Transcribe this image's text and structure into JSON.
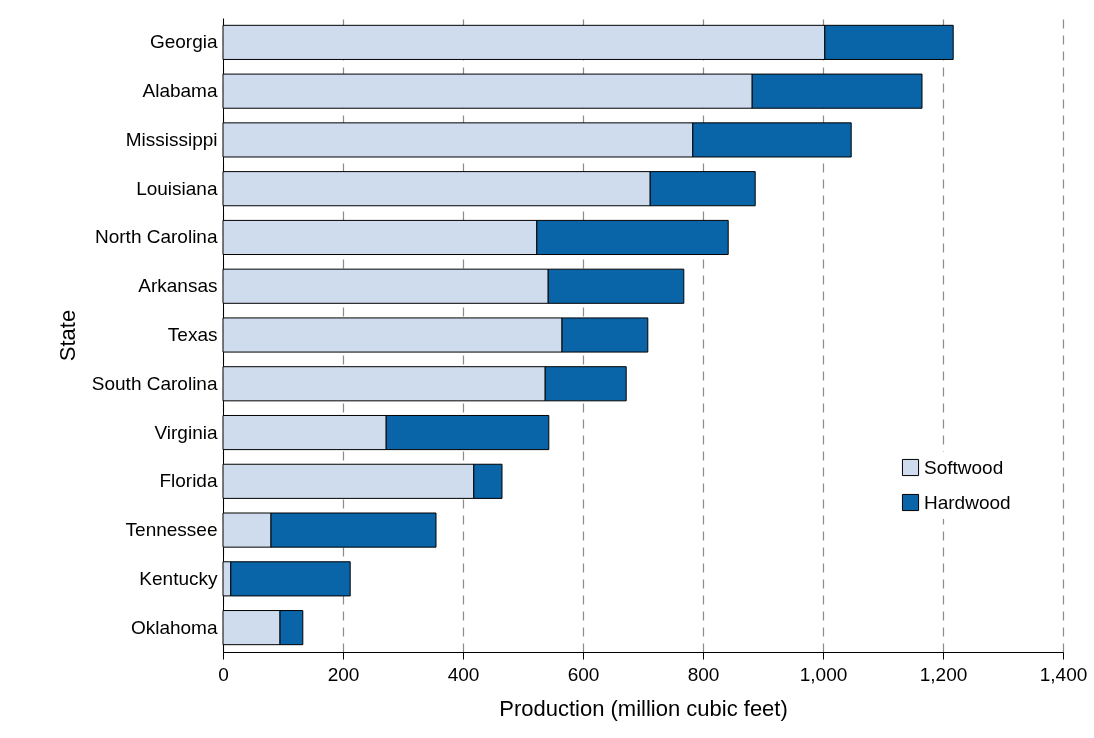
{
  "chart_data": {
    "type": "bar",
    "orientation": "horizontal",
    "stacked": true,
    "ylabel": "State",
    "xlabel": "Production (million cubic feet)",
    "categories": [
      "Georgia",
      "Alabama",
      "Mississippi",
      "Louisiana",
      "North Carolina",
      "Arkansas",
      "Texas",
      "South Carolina",
      "Virginia",
      "Florida",
      "Tennessee",
      "Kentucky",
      "Oklahoma"
    ],
    "series": [
      {
        "name": "Softwood",
        "color": "#cfdcee",
        "values": [
          1003,
          882,
          783,
          712,
          523,
          542,
          565,
          537,
          272,
          418,
          80,
          13,
          95
        ]
      },
      {
        "name": "Hardwood",
        "color": "#0a64a8",
        "values": [
          214,
          283,
          264,
          175,
          319,
          226,
          143,
          135,
          271,
          47,
          275,
          199,
          38
        ]
      }
    ],
    "xlim": [
      0,
      1400
    ],
    "xticks": [
      0,
      200,
      400,
      600,
      800,
      {
        "value": 1000,
        "label": "1,000"
      },
      {
        "value": 1200,
        "label": "1,200"
      },
      {
        "value": 1400,
        "label": "1,400"
      }
    ],
    "grid": "x",
    "legend": "bottom right"
  }
}
